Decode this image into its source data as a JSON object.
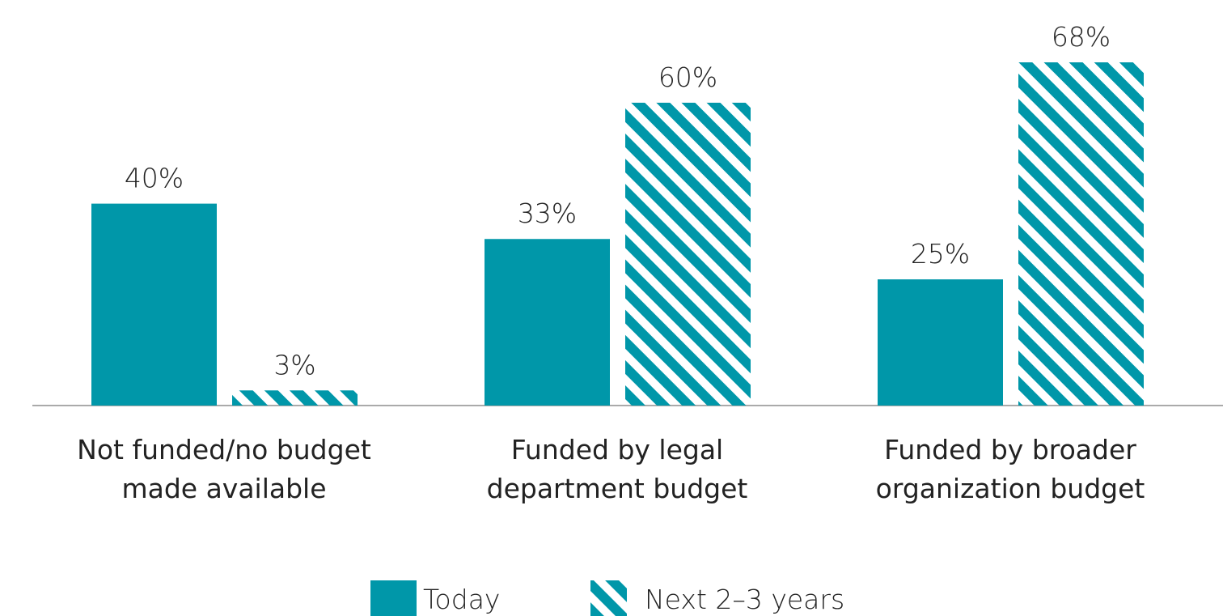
{
  "chart_data": {
    "type": "bar",
    "categories": [
      "Not funded/no budget made available",
      "Funded by legal department budget",
      "Funded by broader organization budget"
    ],
    "series": [
      {
        "name": "Today",
        "color": "#0097a9",
        "hatch": false,
        "values": [
          40,
          33,
          25
        ],
        "value_labels": [
          "40%",
          "33%",
          "25%"
        ]
      },
      {
        "name": "Next 2–3 years",
        "color": "#0097a9",
        "hatch": true,
        "values": [
          3,
          60,
          68
        ],
        "value_labels": [
          "3%",
          "60%",
          "68%"
        ]
      }
    ],
    "legend": "bottom"
  }
}
